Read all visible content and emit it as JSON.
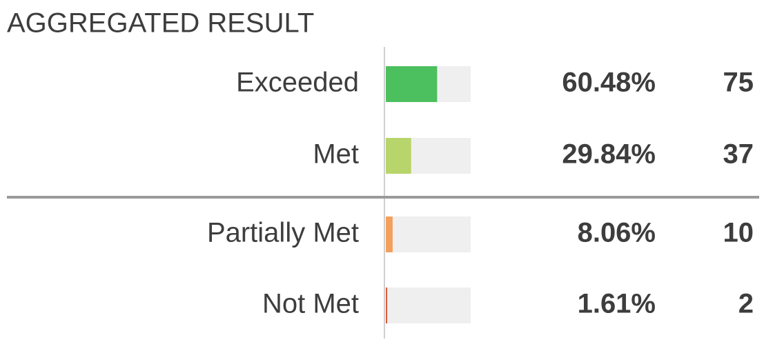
{
  "chart_data": {
    "type": "bar",
    "title": "AGGREGATED RESULT",
    "categories": [
      "Exceeded",
      "Met",
      "Partially Met",
      "Not Met"
    ],
    "values": [
      60.48,
      29.84,
      8.06,
      1.61
    ],
    "value_labels": [
      "60.48%",
      "29.84%",
      "8.06%",
      "1.61%"
    ],
    "counts": [
      75,
      37,
      10,
      2
    ],
    "colors": [
      "#4cbf5e",
      "#b7d56b",
      "#f4a05c",
      "#e0573a"
    ],
    "xlim": [
      0,
      100
    ]
  }
}
